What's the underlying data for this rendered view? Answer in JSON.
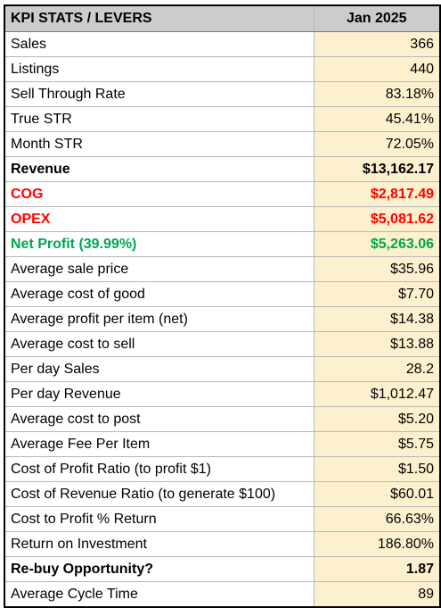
{
  "header": {
    "label": "KPI STATS / LEVERS",
    "period": "Jan 2025"
  },
  "colors": {
    "header_bg": "#cccccc",
    "value_bg": "#fdf0cf",
    "negative": "#ff0000",
    "positive": "#00a650"
  },
  "rows": [
    {
      "label": "Sales",
      "value": "366",
      "style": "normal"
    },
    {
      "label": "Listings",
      "value": "440",
      "style": "normal"
    },
    {
      "label": "Sell Through Rate",
      "value": "83.18%",
      "style": "normal"
    },
    {
      "label": "True STR",
      "value": "45.41%",
      "style": "normal"
    },
    {
      "label": "Month STR",
      "value": "72.05%",
      "style": "normal"
    },
    {
      "label": "Revenue",
      "value": "$13,162.17",
      "style": "bold"
    },
    {
      "label": "COG",
      "value": "$2,817.49",
      "style": "red"
    },
    {
      "label": "OPEX",
      "value": "$5,081.62",
      "style": "red"
    },
    {
      "label": "Net Profit (39.99%)",
      "value": "$5,263.06",
      "style": "green"
    },
    {
      "label": "Average sale price",
      "value": "$35.96",
      "style": "normal"
    },
    {
      "label": "Average cost of good",
      "value": "$7.70",
      "style": "normal"
    },
    {
      "label": "Average profit per item (net)",
      "value": "$14.38",
      "style": "normal"
    },
    {
      "label": "Average cost to sell",
      "value": "$13.88",
      "style": "normal"
    },
    {
      "label": "Per day Sales",
      "value": "28.2",
      "style": "normal"
    },
    {
      "label": "Per day Revenue",
      "value": "$1,012.47",
      "style": "normal"
    },
    {
      "label": "Average cost to post",
      "value": "$5.20",
      "style": "normal"
    },
    {
      "label": "Average Fee Per Item",
      "value": "$5.75",
      "style": "normal"
    },
    {
      "label": "Cost of Profit Ratio (to profit $1)",
      "value": "$1.50",
      "style": "normal"
    },
    {
      "label": "Cost of Revenue Ratio (to generate $100)",
      "value": "$60.01",
      "style": "normal"
    },
    {
      "label": "Cost to Profit % Return",
      "value": "66.63%",
      "style": "normal"
    },
    {
      "label": "Return on Investment",
      "value": "186.80%",
      "style": "normal"
    },
    {
      "label": "Re-buy Opportunity?",
      "value": "1.87",
      "style": "bold"
    },
    {
      "label": "Average Cycle Time",
      "value": "89",
      "style": "normal"
    }
  ]
}
